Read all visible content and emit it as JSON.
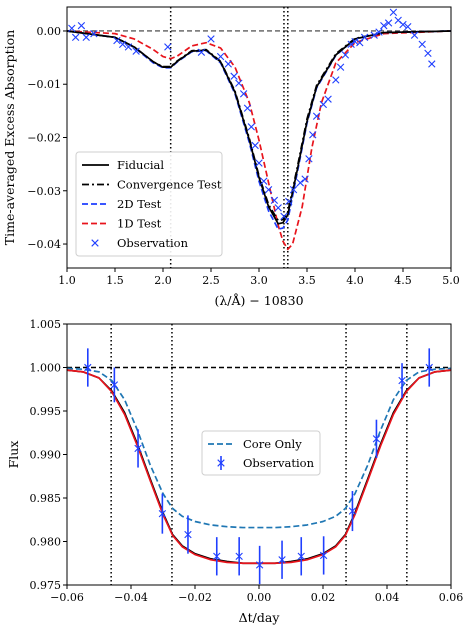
{
  "chart_data": [
    {
      "type": "line",
      "xlabel": "(λ/Å) − 10830",
      "ylabel": "Time-averaged Excess Absorption",
      "xlim": [
        1.0,
        5.0
      ],
      "ylim": [
        -0.0445,
        0.0045
      ],
      "xticks": [
        1.0,
        1.5,
        2.0,
        2.5,
        3.0,
        3.5,
        4.0,
        4.5,
        5.0
      ],
      "xtick_labels": [
        "1.0",
        "1.5",
        "2.0",
        "2.5",
        "3.0",
        "3.5",
        "4.0",
        "4.5",
        "5.0"
      ],
      "yticks": [
        0.0,
        -0.01,
        -0.02,
        -0.03,
        -0.04
      ],
      "ytick_labels": [
        "0.00",
        "−0.01",
        "−0.02",
        "−0.03",
        "−0.04"
      ],
      "grid": false,
      "legend_position": "lower-left",
      "reference_line_y": 0.0,
      "vertical_lines_x": [
        2.08,
        3.26,
        3.3
      ],
      "series": [
        {
          "name": "Fiducial",
          "color": "#000000",
          "style": "solid",
          "x": [
            1.0,
            1.5,
            1.7,
            1.9,
            2.0,
            2.08,
            2.15,
            2.3,
            2.45,
            2.6,
            2.75,
            2.9,
            3.0,
            3.1,
            3.2,
            3.25,
            3.3,
            3.4,
            3.5,
            3.6,
            3.8,
            4.0,
            4.3,
            5.0
          ],
          "y": [
            0.0,
            -0.0012,
            -0.003,
            -0.0058,
            -0.0068,
            -0.0068,
            -0.0057,
            -0.0038,
            -0.0036,
            -0.0058,
            -0.0115,
            -0.0205,
            -0.0275,
            -0.033,
            -0.0362,
            -0.036,
            -0.0345,
            -0.026,
            -0.017,
            -0.0105,
            -0.0045,
            -0.0015,
            -0.0003,
            0.0
          ]
        },
        {
          "name": "Convergence Test",
          "color": "#000000",
          "style": "dashdot",
          "x": [
            1.0,
            1.5,
            1.7,
            1.9,
            2.0,
            2.08,
            2.15,
            2.3,
            2.45,
            2.6,
            2.75,
            2.9,
            3.0,
            3.1,
            3.2,
            3.25,
            3.3,
            3.4,
            3.5,
            3.6,
            3.8,
            4.0,
            4.3,
            5.0
          ],
          "y": [
            0.0,
            -0.0012,
            -0.003,
            -0.0058,
            -0.0067,
            -0.0067,
            -0.0056,
            -0.0037,
            -0.0035,
            -0.0057,
            -0.0113,
            -0.0202,
            -0.0272,
            -0.0326,
            -0.0356,
            -0.0354,
            -0.034,
            -0.0255,
            -0.0165,
            -0.0102,
            -0.0043,
            -0.0014,
            -0.0003,
            0.0
          ]
        },
        {
          "name": "2D Test",
          "color": "#1f3fff",
          "style": "dashed",
          "x": [
            1.0,
            1.5,
            1.7,
            1.9,
            2.0,
            2.08,
            2.15,
            2.3,
            2.45,
            2.6,
            2.75,
            2.9,
            3.0,
            3.1,
            3.2,
            3.25,
            3.3,
            3.4,
            3.5,
            3.6,
            3.8,
            4.0,
            4.3,
            5.0
          ],
          "y": [
            0.0,
            -0.0012,
            -0.0031,
            -0.006,
            -0.0069,
            -0.0069,
            -0.0058,
            -0.0039,
            -0.0037,
            -0.006,
            -0.0118,
            -0.021,
            -0.0282,
            -0.0338,
            -0.0372,
            -0.037,
            -0.0355,
            -0.0265,
            -0.0173,
            -0.0107,
            -0.0046,
            -0.0015,
            -0.0003,
            0.0
          ]
        },
        {
          "name": "1D Test",
          "color": "#e8141c",
          "style": "dashed",
          "x": [
            1.0,
            1.5,
            1.7,
            1.9,
            2.0,
            2.08,
            2.15,
            2.3,
            2.45,
            2.6,
            2.75,
            2.9,
            3.0,
            3.1,
            3.2,
            3.25,
            3.3,
            3.35,
            3.45,
            3.55,
            3.65,
            3.8,
            4.0,
            4.3,
            5.0
          ],
          "y": [
            0.0,
            -0.0005,
            -0.0015,
            -0.0035,
            -0.0048,
            -0.0052,
            -0.0047,
            -0.0028,
            -0.0022,
            -0.0032,
            -0.0068,
            -0.0135,
            -0.0205,
            -0.0285,
            -0.0365,
            -0.0395,
            -0.041,
            -0.04,
            -0.033,
            -0.022,
            -0.0135,
            -0.006,
            -0.0022,
            -0.0005,
            0.0
          ]
        }
      ],
      "scatter": {
        "name": "Observation",
        "color": "#1f3fff",
        "marker": "x",
        "x": [
          1.05,
          1.09,
          1.15,
          1.2,
          1.28,
          1.52,
          1.58,
          1.64,
          1.72,
          2.05,
          2.4,
          2.5,
          2.6,
          2.68,
          2.74,
          2.79,
          2.84,
          2.88,
          2.92,
          2.96,
          3.0,
          3.05,
          3.1,
          3.16,
          3.2,
          3.26,
          3.31,
          3.36,
          3.43,
          3.48,
          3.52,
          3.56,
          3.6,
          3.67,
          3.72,
          3.8,
          3.85,
          3.9,
          3.96,
          4.0,
          4.05,
          4.1,
          4.2,
          4.25,
          4.3,
          4.35,
          4.4,
          4.45,
          4.5,
          4.55,
          4.62,
          4.7,
          4.76,
          4.8
        ],
        "y": [
          0.0005,
          -0.0012,
          0.001,
          -0.0012,
          -0.0005,
          -0.0018,
          -0.0025,
          -0.003,
          -0.0038,
          -0.003,
          -0.004,
          -0.0015,
          -0.0048,
          -0.0062,
          -0.0085,
          -0.0098,
          -0.0118,
          -0.0145,
          -0.018,
          -0.0215,
          -0.0248,
          -0.0282,
          -0.0298,
          -0.0318,
          -0.0332,
          -0.0348,
          -0.032,
          -0.0298,
          -0.0285,
          -0.0278,
          -0.024,
          -0.0195,
          -0.016,
          -0.0138,
          -0.0128,
          -0.0092,
          -0.0068,
          -0.0045,
          -0.0025,
          -0.002,
          -0.0022,
          -0.0012,
          -0.0008,
          -0.0002,
          0.001,
          0.0015,
          0.0035,
          0.002,
          0.0012,
          0.0008,
          -0.0008,
          -0.0025,
          -0.0042,
          -0.0062
        ]
      }
    },
    {
      "type": "line",
      "xlabel": "Δt/day",
      "ylabel": "Flux",
      "xlim": [
        -0.06,
        0.06
      ],
      "ylim": [
        0.975,
        1.005
      ],
      "xticks": [
        -0.06,
        -0.04,
        -0.02,
        0.0,
        0.02,
        0.04,
        0.06
      ],
      "xtick_labels": [
        "−0.06",
        "−0.04",
        "−0.02",
        "0.00",
        "0.02",
        "0.04",
        "0.06"
      ],
      "yticks": [
        0.975,
        0.98,
        0.985,
        0.99,
        0.995,
        1.0,
        1.005
      ],
      "ytick_labels": [
        "0.975",
        "0.980",
        "0.985",
        "0.990",
        "0.995",
        "1.000",
        "1.005"
      ],
      "grid": false,
      "legend_position": "center",
      "reference_line_y": 1.0,
      "vertical_lines_x": [
        -0.0462,
        -0.0272,
        0.0272,
        0.0462
      ],
      "series": [
        {
          "name": "",
          "color": "#000000",
          "style": "solid",
          "x": [
            -0.06,
            -0.055,
            -0.05,
            -0.046,
            -0.042,
            -0.038,
            -0.034,
            -0.03,
            -0.027,
            -0.024,
            -0.02,
            -0.015,
            -0.01,
            -0.005,
            0.0,
            0.005,
            0.01,
            0.015,
            0.02,
            0.024,
            0.027,
            0.03,
            0.034,
            0.038,
            0.042,
            0.046,
            0.05,
            0.055,
            0.06
          ],
          "y": [
            0.9997,
            0.9995,
            0.9988,
            0.9973,
            0.9948,
            0.9912,
            0.9872,
            0.9833,
            0.9808,
            0.9795,
            0.9786,
            0.978,
            0.9777,
            0.9775,
            0.9775,
            0.9775,
            0.9777,
            0.978,
            0.9786,
            0.9795,
            0.9808,
            0.9833,
            0.9872,
            0.9912,
            0.9948,
            0.9973,
            0.9988,
            0.9995,
            0.9997
          ]
        },
        {
          "name": "",
          "color": "#e8141c",
          "style": "solid",
          "x": [
            -0.06,
            -0.055,
            -0.05,
            -0.046,
            -0.042,
            -0.038,
            -0.034,
            -0.03,
            -0.027,
            -0.024,
            -0.02,
            -0.015,
            -0.01,
            -0.005,
            0.0,
            0.005,
            0.01,
            0.015,
            0.02,
            0.024,
            0.027,
            0.03,
            0.034,
            0.038,
            0.042,
            0.046,
            0.05,
            0.055,
            0.06
          ],
          "y": [
            0.9997,
            0.9995,
            0.9988,
            0.9972,
            0.9946,
            0.991,
            0.987,
            0.9831,
            0.9807,
            0.9794,
            0.9785,
            0.9779,
            0.9776,
            0.9775,
            0.9775,
            0.9775,
            0.9776,
            0.9779,
            0.9785,
            0.9794,
            0.9807,
            0.9831,
            0.987,
            0.991,
            0.9946,
            0.9972,
            0.9988,
            0.9995,
            0.9997
          ]
        },
        {
          "name": "Core Only",
          "color": "#1f77b4",
          "style": "dashed",
          "x": [
            -0.06,
            -0.055,
            -0.05,
            -0.046,
            -0.042,
            -0.038,
            -0.034,
            -0.03,
            -0.027,
            -0.024,
            -0.02,
            -0.015,
            -0.01,
            -0.005,
            0.0,
            0.005,
            0.01,
            0.015,
            0.02,
            0.024,
            0.027,
            0.03,
            0.034,
            0.038,
            0.042,
            0.046,
            0.05,
            0.055,
            0.06
          ],
          "y": [
            0.9999,
            0.9998,
            0.9995,
            0.9985,
            0.9963,
            0.9928,
            0.9888,
            0.9855,
            0.9838,
            0.9829,
            0.9823,
            0.9819,
            0.9817,
            0.9816,
            0.9816,
            0.9816,
            0.9817,
            0.9819,
            0.9823,
            0.9829,
            0.9838,
            0.9855,
            0.9888,
            0.9928,
            0.9963,
            0.9985,
            0.9995,
            0.9998,
            0.9999
          ]
        }
      ],
      "errorbars": {
        "name": "Observation",
        "color": "#1f3fff",
        "marker": "x",
        "x": [
          -0.0535,
          -0.0452,
          -0.0378,
          -0.0302,
          -0.0222,
          -0.0132,
          -0.0062,
          0.0002,
          0.0072,
          0.0132,
          0.0202,
          0.0292,
          0.0367,
          0.0447,
          0.0532
        ],
        "y": [
          1.0,
          0.998,
          0.9907,
          0.9832,
          0.9808,
          0.9783,
          0.9783,
          0.9773,
          0.9779,
          0.9783,
          0.9784,
          0.9835,
          0.9918,
          0.9985,
          1.0
        ],
        "yerr": [
          0.0022,
          0.002,
          0.0022,
          0.0023,
          0.0022,
          0.0022,
          0.0022,
          0.0022,
          0.0022,
          0.0022,
          0.0022,
          0.0023,
          0.0022,
          0.002,
          0.0022
        ]
      }
    }
  ]
}
